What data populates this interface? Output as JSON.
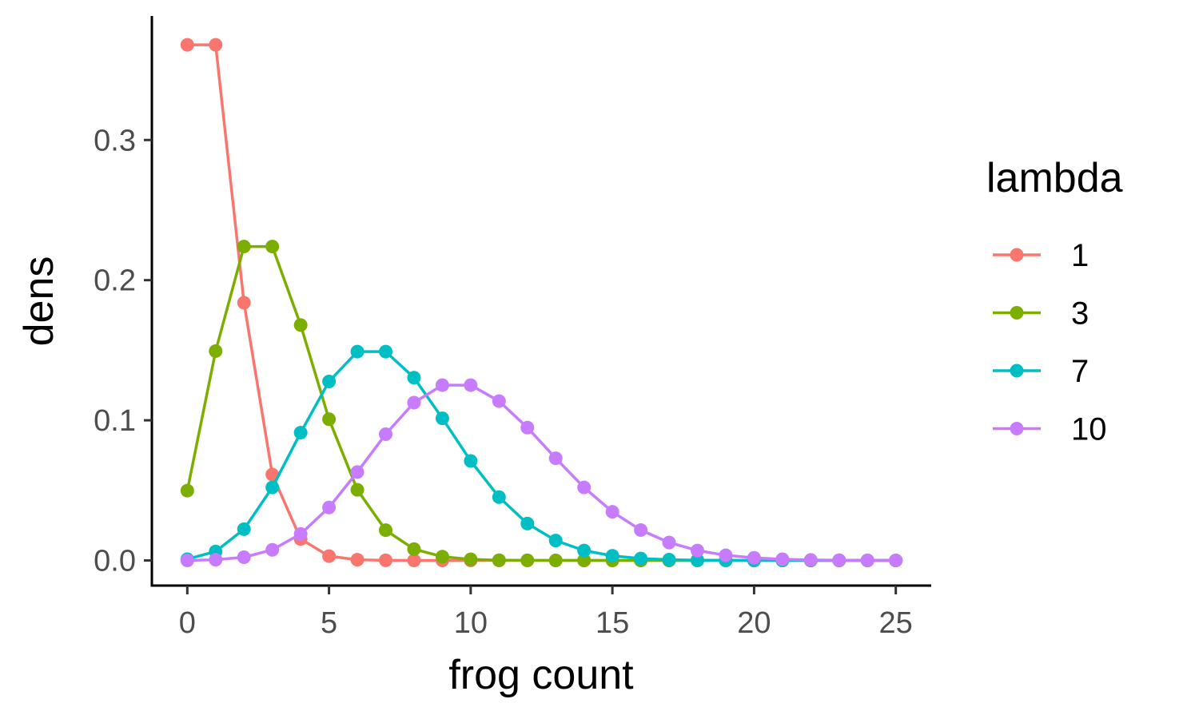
{
  "chart_data": {
    "type": "line",
    "xlabel": "frog count",
    "ylabel": "dens",
    "xlim": [
      -1.25,
      26.25
    ],
    "ylim": [
      -0.0185,
      0.3885
    ],
    "x_ticks": [
      0,
      5,
      10,
      15,
      20,
      25
    ],
    "y_ticks": [
      0.0,
      0.1,
      0.2,
      0.3
    ],
    "x_tick_labels": [
      "0",
      "5",
      "10",
      "15",
      "20",
      "25"
    ],
    "y_tick_labels": [
      "0.0",
      "0.1",
      "0.2",
      "0.3"
    ],
    "grid": false,
    "legend": {
      "title": "lambda",
      "position": "right"
    },
    "x": [
      0,
      1,
      2,
      3,
      4,
      5,
      6,
      7,
      8,
      9,
      10,
      11,
      12,
      13,
      14,
      15,
      16,
      17,
      18,
      19,
      20,
      21,
      22,
      23,
      24,
      25
    ],
    "series": [
      {
        "name": "1",
        "color": "#F8766D",
        "values": [
          0.3679,
          0.3679,
          0.1839,
          0.0613,
          0.0153,
          0.0031,
          0.0005,
          0.0001,
          0.0,
          0.0,
          0.0,
          0.0,
          0.0,
          0.0,
          0.0,
          0.0,
          0.0,
          0.0,
          0.0,
          0.0,
          0.0,
          0.0,
          0.0,
          0.0,
          0.0,
          0.0
        ]
      },
      {
        "name": "3",
        "color": "#7CAE00",
        "values": [
          0.0498,
          0.1494,
          0.224,
          0.224,
          0.168,
          0.1008,
          0.0504,
          0.0216,
          0.0081,
          0.0027,
          0.0008,
          0.0002,
          0.0001,
          0.0,
          0.0,
          0.0,
          0.0,
          0.0,
          0.0,
          0.0,
          0.0,
          0.0,
          0.0,
          0.0,
          0.0,
          0.0
        ]
      },
      {
        "name": "7",
        "color": "#00BFC4",
        "values": [
          0.0009,
          0.0064,
          0.0223,
          0.0521,
          0.0912,
          0.1277,
          0.149,
          0.149,
          0.1304,
          0.1014,
          0.071,
          0.0452,
          0.0263,
          0.0142,
          0.0071,
          0.0033,
          0.0014,
          0.0006,
          0.0002,
          0.0001,
          0.0,
          0.0,
          0.0,
          0.0,
          0.0,
          0.0
        ]
      },
      {
        "name": "10",
        "color": "#C77CFF",
        "values": [
          0.0,
          0.0005,
          0.0023,
          0.0076,
          0.0189,
          0.0378,
          0.0631,
          0.0901,
          0.1126,
          0.1251,
          0.1251,
          0.1137,
          0.0948,
          0.0729,
          0.0521,
          0.0347,
          0.0217,
          0.0128,
          0.0071,
          0.0037,
          0.0019,
          0.0009,
          0.0004,
          0.0002,
          0.0001,
          0.0
        ]
      }
    ]
  }
}
